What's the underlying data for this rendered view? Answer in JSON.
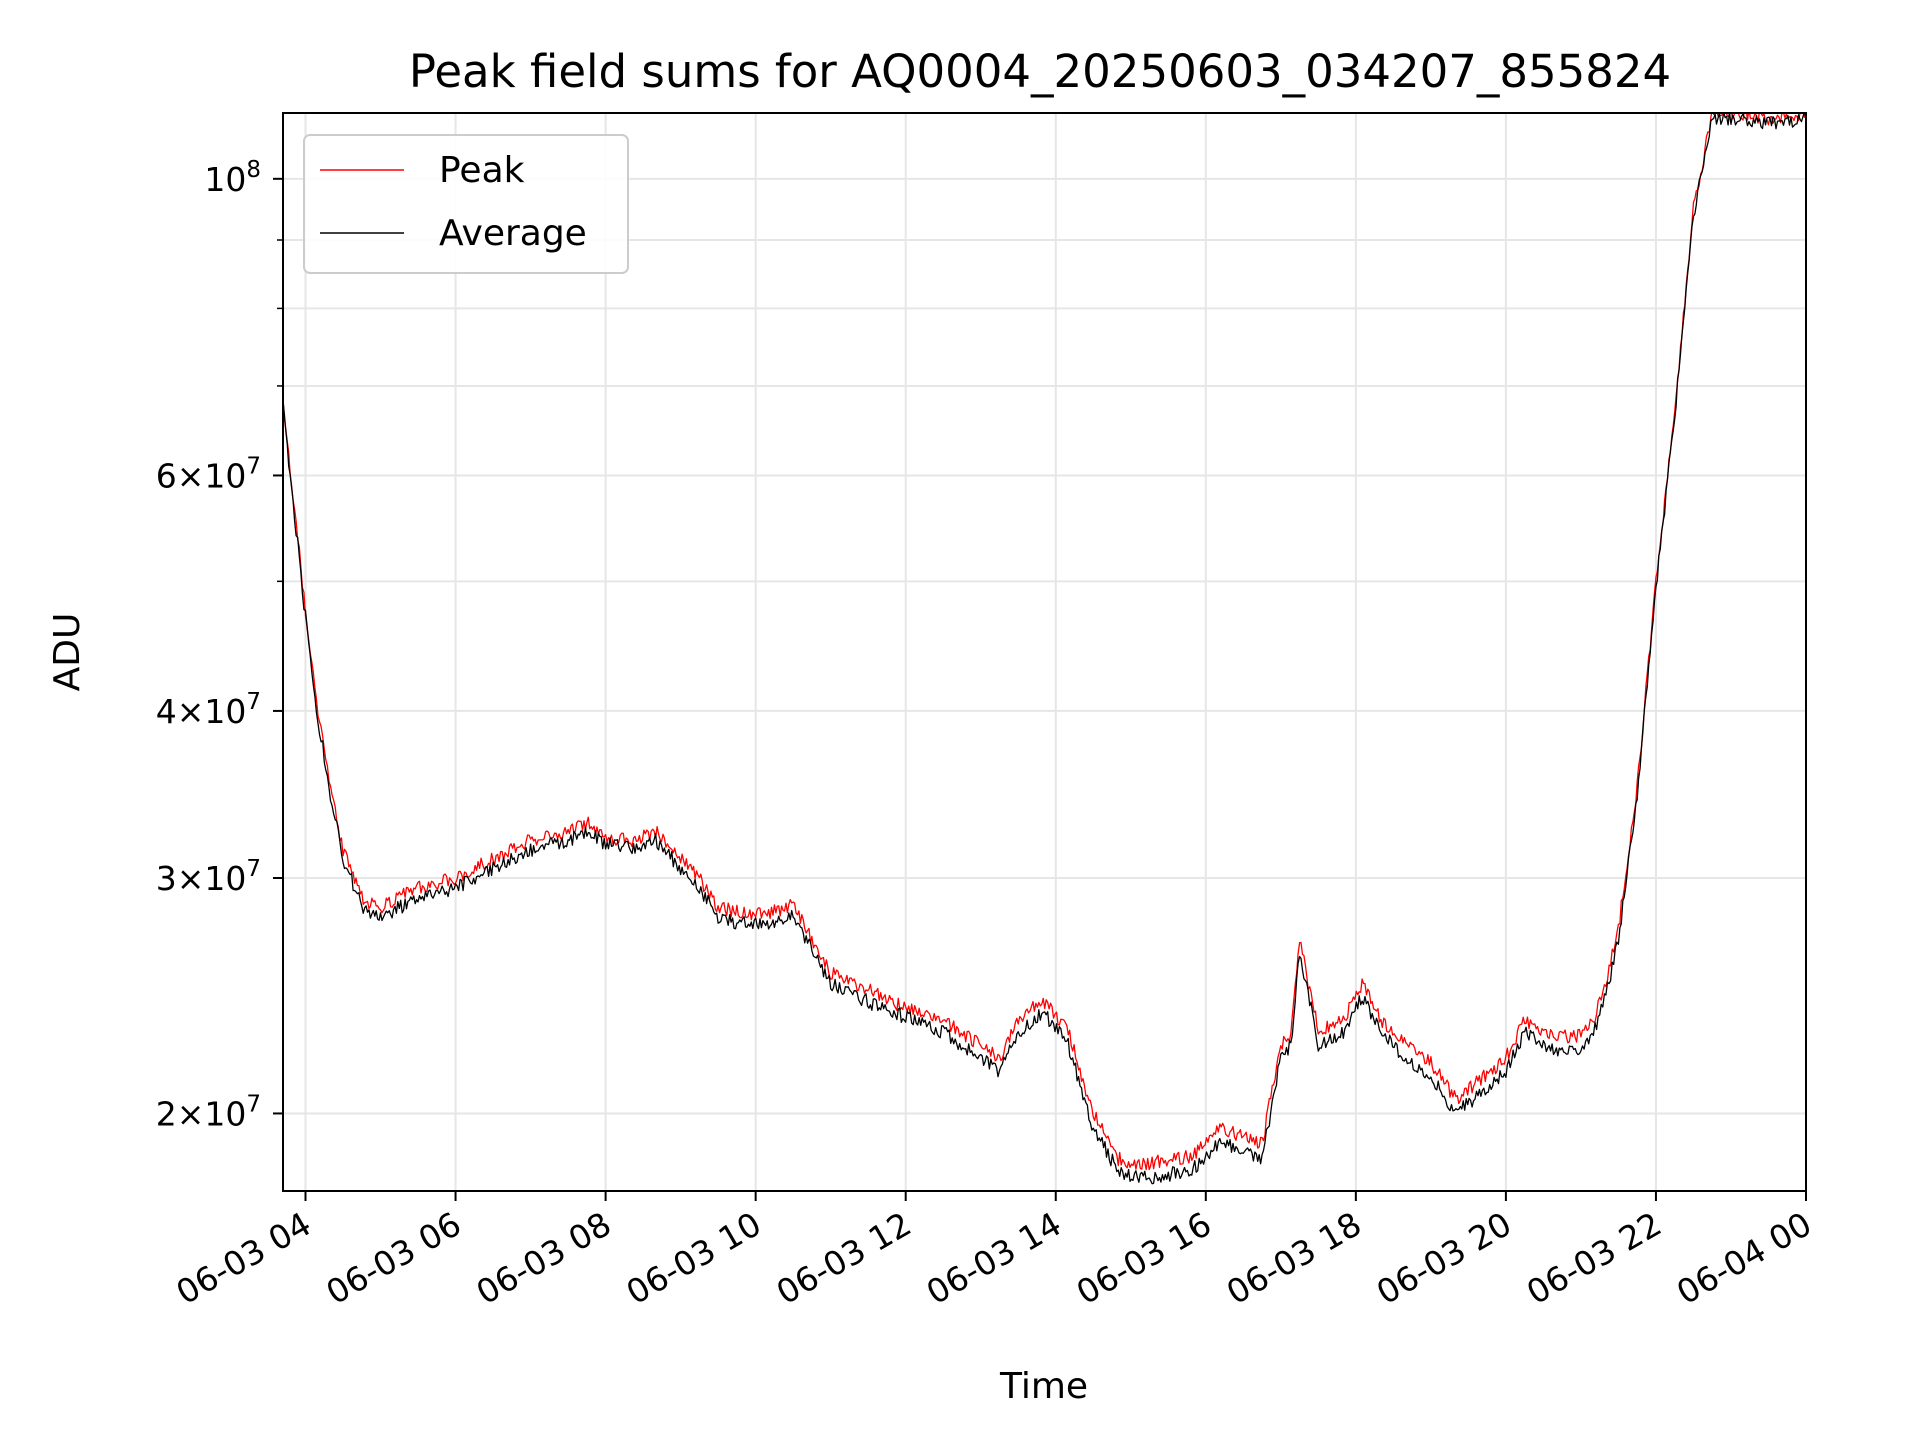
{
  "chart_data": {
    "type": "line",
    "title": "Peak field sums for AQ0004_20250603_034207_855824",
    "xlabel": "Time",
    "ylabel": "ADU",
    "y_scale": "log",
    "ylim": [
      17500000,
      112000000
    ],
    "xlim": [
      "2025-06-03 03:42",
      "2025-06-04 00:00"
    ],
    "grid": true,
    "legend_position": "top-left",
    "x_ticks": [
      {
        "value": "2025-06-03 04:00",
        "label": "06-03 04"
      },
      {
        "value": "2025-06-03 06:00",
        "label": "06-03 06"
      },
      {
        "value": "2025-06-03 08:00",
        "label": "06-03 08"
      },
      {
        "value": "2025-06-03 10:00",
        "label": "06-03 10"
      },
      {
        "value": "2025-06-03 12:00",
        "label": "06-03 12"
      },
      {
        "value": "2025-06-03 14:00",
        "label": "06-03 14"
      },
      {
        "value": "2025-06-03 16:00",
        "label": "06-03 16"
      },
      {
        "value": "2025-06-03 18:00",
        "label": "06-03 18"
      },
      {
        "value": "2025-06-03 20:00",
        "label": "06-03 20"
      },
      {
        "value": "2025-06-03 22:00",
        "label": "06-03 22"
      },
      {
        "value": "2025-06-04 00:00",
        "label": "06-04 00"
      }
    ],
    "y_ticks": [
      {
        "value": 20000000,
        "mantissa": "2",
        "exponent": "7"
      },
      {
        "value": 30000000,
        "mantissa": "3",
        "exponent": "7"
      },
      {
        "value": 40000000,
        "mantissa": "4",
        "exponent": "7"
      },
      {
        "value": 60000000,
        "mantissa": "6",
        "exponent": "7"
      },
      {
        "value": 100000000,
        "mantissa": "",
        "exponent": "8"
      }
    ],
    "y_minor_ticks": [
      50000000,
      70000000,
      80000000,
      90000000
    ],
    "series": [
      {
        "name": "Peak",
        "color": "#ff0000",
        "x": [
          "2025-06-03 03:42",
          "2025-06-03 03:50",
          "2025-06-03 04:00",
          "2025-06-03 04:10",
          "2025-06-03 04:20",
          "2025-06-03 04:30",
          "2025-06-03 04:45",
          "2025-06-03 05:00",
          "2025-06-03 05:15",
          "2025-06-03 05:30",
          "2025-06-03 06:00",
          "2025-06-03 06:30",
          "2025-06-03 07:00",
          "2025-06-03 07:30",
          "2025-06-03 07:45",
          "2025-06-03 08:00",
          "2025-06-03 08:20",
          "2025-06-03 08:40",
          "2025-06-03 09:00",
          "2025-06-03 09:15",
          "2025-06-03 09:30",
          "2025-06-03 09:45",
          "2025-06-03 10:00",
          "2025-06-03 10:15",
          "2025-06-03 10:30",
          "2025-06-03 10:45",
          "2025-06-03 11:00",
          "2025-06-03 11:20",
          "2025-06-03 11:40",
          "2025-06-03 12:00",
          "2025-06-03 12:30",
          "2025-06-03 13:00",
          "2025-06-03 13:15",
          "2025-06-03 13:30",
          "2025-06-03 13:50",
          "2025-06-03 14:10",
          "2025-06-03 14:30",
          "2025-06-03 14:50",
          "2025-06-03 15:10",
          "2025-06-03 15:30",
          "2025-06-03 15:50",
          "2025-06-03 16:10",
          "2025-06-03 16:30",
          "2025-06-03 16:45",
          "2025-06-03 17:00",
          "2025-06-03 17:08",
          "2025-06-03 17:15",
          "2025-06-03 17:30",
          "2025-06-03 17:50",
          "2025-06-03 18:05",
          "2025-06-03 18:20",
          "2025-06-03 18:40",
          "2025-06-03 19:00",
          "2025-06-03 19:20",
          "2025-06-03 19:40",
          "2025-06-03 20:00",
          "2025-06-03 20:15",
          "2025-06-03 20:30",
          "2025-06-03 20:45",
          "2025-06-03 21:00",
          "2025-06-03 21:10",
          "2025-06-03 21:20",
          "2025-06-03 21:30",
          "2025-06-03 21:45",
          "2025-06-03 22:00",
          "2025-06-03 22:15",
          "2025-06-03 22:30",
          "2025-06-03 22:45",
          "2025-06-03 23:00",
          "2025-06-03 23:30",
          "2025-06-04 00:00"
        ],
        "values": [
          68000000,
          58000000,
          47500000,
          40000000,
          35000000,
          31500000,
          29000000,
          28500000,
          29000000,
          29500000,
          30000000,
          31000000,
          32000000,
          32500000,
          33000000,
          32200000,
          32000000,
          32500000,
          31000000,
          30000000,
          28500000,
          28300000,
          28200000,
          28300000,
          28700000,
          27000000,
          25500000,
          25000000,
          24500000,
          24000000,
          23500000,
          22500000,
          22000000,
          23500000,
          24300000,
          23000000,
          20000000,
          18500000,
          18300000,
          18500000,
          18600000,
          19500000,
          19200000,
          19000000,
          22500000,
          23000000,
          27000000,
          23000000,
          23500000,
          25000000,
          23500000,
          22500000,
          21800000,
          20500000,
          21200000,
          22000000,
          23500000,
          23000000,
          22800000,
          22900000,
          23500000,
          25000000,
          27500000,
          35000000,
          50000000,
          67000000,
          95000000,
          112000000,
          112000000,
          111000000,
          112000000
        ]
      },
      {
        "name": "Average",
        "color": "#000000",
        "x": [
          "2025-06-03 03:42",
          "2025-06-03 03:50",
          "2025-06-03 04:00",
          "2025-06-03 04:10",
          "2025-06-03 04:20",
          "2025-06-03 04:30",
          "2025-06-03 04:45",
          "2025-06-03 05:00",
          "2025-06-03 05:15",
          "2025-06-03 05:30",
          "2025-06-03 06:00",
          "2025-06-03 06:30",
          "2025-06-03 07:00",
          "2025-06-03 07:30",
          "2025-06-03 07:45",
          "2025-06-03 08:00",
          "2025-06-03 08:20",
          "2025-06-03 08:40",
          "2025-06-03 09:00",
          "2025-06-03 09:15",
          "2025-06-03 09:30",
          "2025-06-03 09:45",
          "2025-06-03 10:00",
          "2025-06-03 10:15",
          "2025-06-03 10:30",
          "2025-06-03 10:45",
          "2025-06-03 11:00",
          "2025-06-03 11:20",
          "2025-06-03 11:40",
          "2025-06-03 12:00",
          "2025-06-03 12:30",
          "2025-06-03 13:00",
          "2025-06-03 13:15",
          "2025-06-03 13:30",
          "2025-06-03 13:50",
          "2025-06-03 14:10",
          "2025-06-03 14:30",
          "2025-06-03 14:50",
          "2025-06-03 15:10",
          "2025-06-03 15:30",
          "2025-06-03 15:50",
          "2025-06-03 16:10",
          "2025-06-03 16:30",
          "2025-06-03 16:45",
          "2025-06-03 17:00",
          "2025-06-03 17:08",
          "2025-06-03 17:15",
          "2025-06-03 17:30",
          "2025-06-03 17:50",
          "2025-06-03 18:05",
          "2025-06-03 18:20",
          "2025-06-03 18:40",
          "2025-06-03 19:00",
          "2025-06-03 19:20",
          "2025-06-03 19:40",
          "2025-06-03 20:00",
          "2025-06-03 20:15",
          "2025-06-03 20:30",
          "2025-06-03 20:45",
          "2025-06-03 21:00",
          "2025-06-03 21:10",
          "2025-06-03 21:20",
          "2025-06-03 21:30",
          "2025-06-03 21:45",
          "2025-06-03 22:00",
          "2025-06-03 22:15",
          "2025-06-03 22:30",
          "2025-06-03 22:45",
          "2025-06-03 23:00",
          "2025-06-03 23:30",
          "2025-06-04 00:00"
        ],
        "values": [
          67500000,
          57500000,
          47000000,
          39500000,
          34500000,
          31000000,
          28600000,
          28000000,
          28500000,
          29000000,
          29500000,
          30500000,
          31500000,
          32000000,
          32500000,
          31800000,
          31600000,
          32000000,
          30500000,
          29500000,
          28000000,
          27800000,
          27700000,
          27800000,
          28200000,
          26500000,
          25000000,
          24500000,
          24000000,
          23600000,
          23000000,
          22000000,
          21500000,
          23000000,
          23800000,
          22500000,
          19500000,
          18100000,
          17900000,
          18000000,
          18200000,
          19000000,
          18800000,
          18500000,
          22000000,
          22500000,
          26500000,
          22500000,
          23000000,
          24500000,
          23000000,
          22000000,
          21300000,
          20000000,
          20700000,
          21500000,
          23000000,
          22500000,
          22300000,
          22400000,
          23000000,
          24500000,
          27000000,
          34500000,
          49500000,
          66500000,
          94000000,
          111000000,
          111000000,
          110000000,
          111000000
        ]
      }
    ]
  }
}
